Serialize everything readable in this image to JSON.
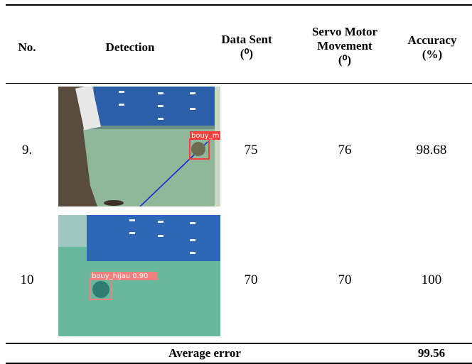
{
  "table": {
    "header": [
      [
        "No."
      ],
      [
        "Detection"
      ],
      [
        "Data Sent",
        "(⁰)"
      ],
      [
        "Servo Motor",
        "Movement",
        "(⁰)"
      ],
      [
        "Accuracy",
        "(%)"
      ]
    ],
    "rows": [
      {
        "no": "9.",
        "detection_label": "bouy_m",
        "data_sent": "75",
        "servo": "76",
        "accuracy": "98.68"
      },
      {
        "no": "10",
        "detection_label": "bouy_hijau  0.90",
        "data_sent": "70",
        "servo": "70",
        "accuracy": "100"
      }
    ],
    "footer": {
      "label": "Average error",
      "value": "99.56"
    }
  }
}
